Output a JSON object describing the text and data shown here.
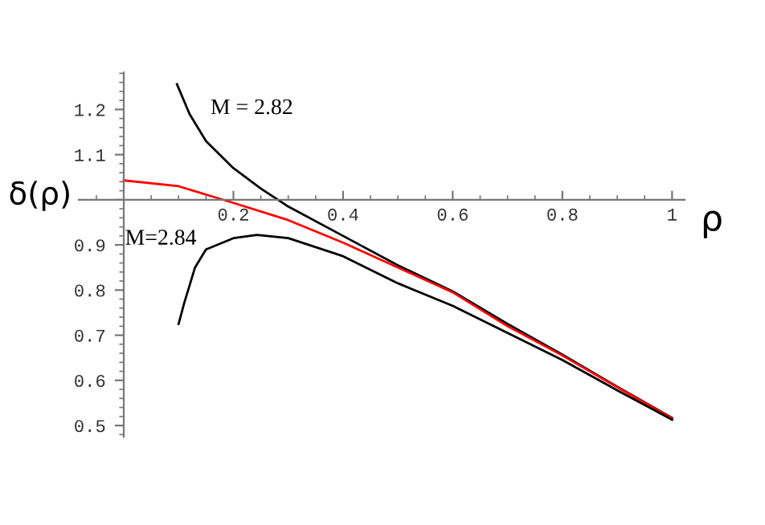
{
  "chart_data": {
    "type": "line",
    "xlabel": "ρ",
    "ylabel": "δ(ρ)",
    "x": [
      0.097,
      0.12,
      0.15,
      0.2,
      0.25,
      0.3,
      0.4,
      0.5,
      0.6,
      0.7,
      0.8,
      0.9,
      1.0
    ],
    "series": [
      {
        "name": "M = 2.82",
        "color": "#000000",
        "values": [
          1.256,
          1.19,
          1.13,
          1.07,
          1.025,
          0.985,
          0.92,
          0.855,
          0.797,
          0.725,
          0.657,
          0.586,
          0.517
        ]
      },
      {
        "color": "#ff0000",
        "x": [
          0,
          0.1,
          0.2,
          0.3,
          0.4,
          0.5,
          0.6,
          0.7,
          0.8,
          0.9,
          1.0
        ],
        "values": [
          1.043,
          1.03,
          0.993,
          0.955,
          0.905,
          0.85,
          0.795,
          0.72,
          0.655,
          0.585,
          0.516
        ]
      },
      {
        "name": "M=2.84",
        "color": "#000000",
        "x": [
          0.1,
          0.11,
          0.12,
          0.13,
          0.15,
          0.2,
          0.243,
          0.3,
          0.4,
          0.5,
          0.6,
          0.7,
          0.8,
          0.9,
          1.0
        ],
        "values": [
          0.725,
          0.77,
          0.81,
          0.85,
          0.89,
          0.915,
          0.922,
          0.915,
          0.875,
          0.815,
          0.765,
          0.705,
          0.645,
          0.578,
          0.513
        ]
      }
    ],
    "xlim": [
      -0.082,
      1.023
    ],
    "ylim": [
      0.475,
      1.282
    ],
    "xticks": [
      0.2,
      0.4,
      0.6,
      0.8,
      1
    ],
    "yticks": [
      0.5,
      0.6,
      0.7,
      0.8,
      0.9,
      {
        "value": 1,
        "label": null
      },
      1.1,
      1.2
    ],
    "grid": false,
    "legend": false,
    "marker": "none",
    "line_style": "solid"
  }
}
